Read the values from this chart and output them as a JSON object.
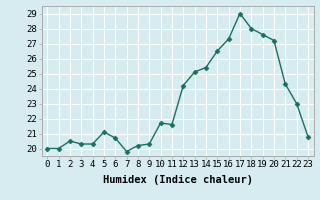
{
  "xlabel": "Humidex (Indice chaleur)",
  "x": [
    0,
    1,
    2,
    3,
    4,
    5,
    6,
    7,
    8,
    9,
    10,
    11,
    12,
    13,
    14,
    15,
    16,
    17,
    18,
    19,
    20,
    21,
    22,
    23
  ],
  "y": [
    20.0,
    20.0,
    20.5,
    20.3,
    20.3,
    21.1,
    20.7,
    19.8,
    20.2,
    20.3,
    21.7,
    21.6,
    24.2,
    25.1,
    25.4,
    26.5,
    27.3,
    29.0,
    28.0,
    27.6,
    27.2,
    24.3,
    23.0,
    20.8
  ],
  "line_color": "#1a7060",
  "marker": "D",
  "marker_size": 2.5,
  "bg_color": "#d6ecf0",
  "grid_color": "#ffffff",
  "spine_color": "#aaaaaa",
  "ylim": [
    19.5,
    29.5
  ],
  "xlim": [
    -0.5,
    23.5
  ],
  "yticks": [
    20,
    21,
    22,
    23,
    24,
    25,
    26,
    27,
    28,
    29
  ],
  "xticks": [
    0,
    1,
    2,
    3,
    4,
    5,
    6,
    7,
    8,
    9,
    10,
    11,
    12,
    13,
    14,
    15,
    16,
    17,
    18,
    19,
    20,
    21,
    22,
    23
  ],
  "tick_fontsize": 6.5,
  "xlabel_fontsize": 7.5,
  "linewidth": 1.0
}
